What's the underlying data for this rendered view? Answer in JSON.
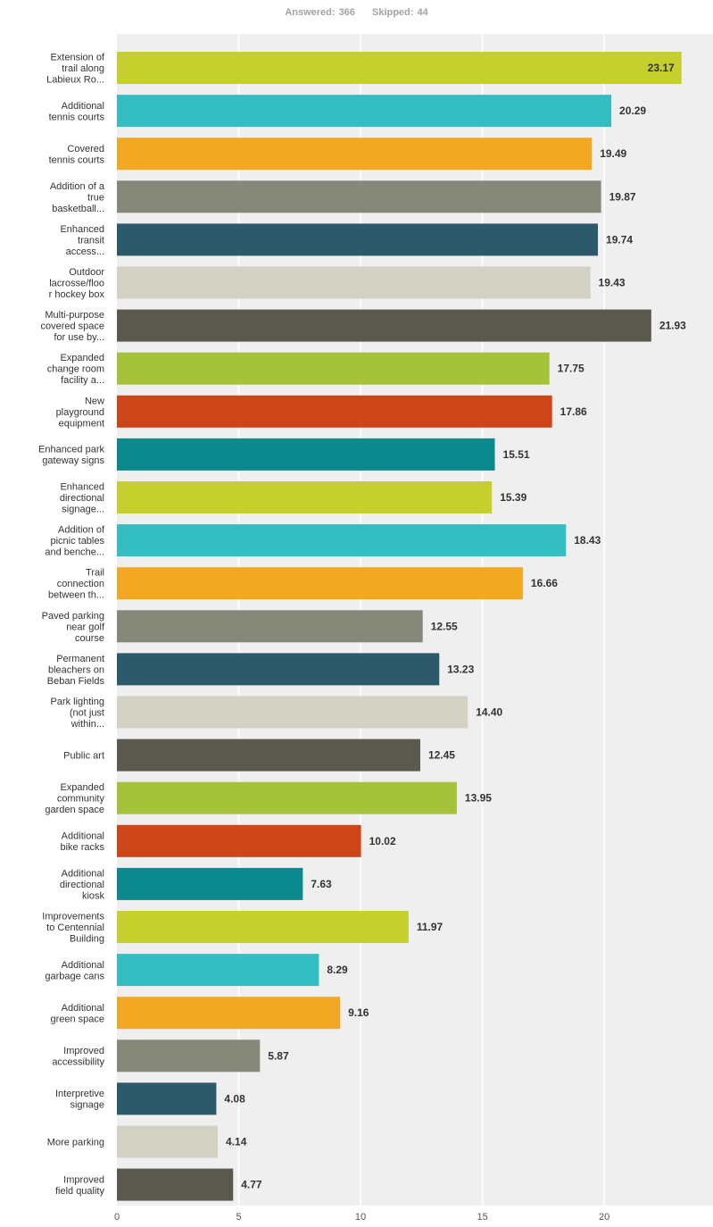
{
  "summary": {
    "answered_label": "Answered:",
    "answered_count": "366",
    "skipped_label": "Skipped:",
    "skipped_count": "44"
  },
  "chart_data": {
    "type": "bar",
    "orientation": "horizontal",
    "categories": [
      [
        "Extension of",
        "trail along",
        "Labieux Ro..."
      ],
      [
        "Additional",
        "tennis courts"
      ],
      [
        "Covered",
        "tennis courts"
      ],
      [
        "Addition of a",
        "true",
        "basketball..."
      ],
      [
        "Enhanced",
        "transit",
        "access..."
      ],
      [
        "Outdoor",
        "lacrosse/floo",
        "r hockey box"
      ],
      [
        "Multi-purpose",
        "covered space",
        "for use by..."
      ],
      [
        "Expanded",
        "change room",
        "facility a..."
      ],
      [
        "New",
        "playground",
        "equipment"
      ],
      [
        "Enhanced park",
        "gateway signs"
      ],
      [
        "Enhanced",
        "directional",
        "signage..."
      ],
      [
        "Addition of",
        "picnic tables",
        "and benche..."
      ],
      [
        "Trail",
        "connection",
        "between th..."
      ],
      [
        "Paved parking",
        "near golf",
        "course"
      ],
      [
        "Permanent",
        "bleachers on",
        "Beban Fields"
      ],
      [
        "Park lighting",
        "(not just",
        "within..."
      ],
      [
        "Public art"
      ],
      [
        "Expanded",
        "community",
        "garden space"
      ],
      [
        "Additional",
        "bike racks"
      ],
      [
        "Additional",
        "directional",
        "kiosk"
      ],
      [
        "Improvements",
        "to Centennial",
        "Building"
      ],
      [
        "Additional",
        "garbage cans"
      ],
      [
        "Additional",
        "green space"
      ],
      [
        "Improved",
        "accessibility"
      ],
      [
        "Interpretive",
        "signage"
      ],
      [
        "More parking"
      ],
      [
        "Improved",
        "field quality"
      ]
    ],
    "values": [
      23.17,
      20.29,
      19.49,
      19.87,
      19.74,
      19.43,
      21.93,
      17.75,
      17.86,
      15.51,
      15.39,
      18.43,
      16.66,
      12.55,
      13.23,
      14.4,
      12.45,
      13.95,
      10.02,
      7.63,
      11.97,
      8.29,
      9.16,
      5.87,
      4.08,
      4.14,
      4.77
    ],
    "value_labels": [
      "23.17",
      "20.29",
      "19.49",
      "19.87",
      "19.74",
      "19.43",
      "21.93",
      "17.75",
      "17.86",
      "15.51",
      "15.39",
      "18.43",
      "16.66",
      "12.55",
      "13.23",
      "14.40",
      "12.45",
      "13.95",
      "10.02",
      "7.63",
      "11.97",
      "8.29",
      "9.16",
      "5.87",
      "4.08",
      "4.14",
      "4.77"
    ],
    "xticks": [
      0,
      5,
      10,
      15,
      20
    ],
    "xlim": [
      0,
      24.5
    ],
    "grid": true,
    "colors": [
      "#c5d02f",
      "#35bec1",
      "#f3a823",
      "#86887a",
      "#2c5a6b",
      "#d2d1c4",
      "#5b594d",
      "#a5c23a",
      "#cd4519",
      "#0b898c"
    ],
    "plot_background": "#efefef",
    "gridline_color": "#ffffff"
  }
}
